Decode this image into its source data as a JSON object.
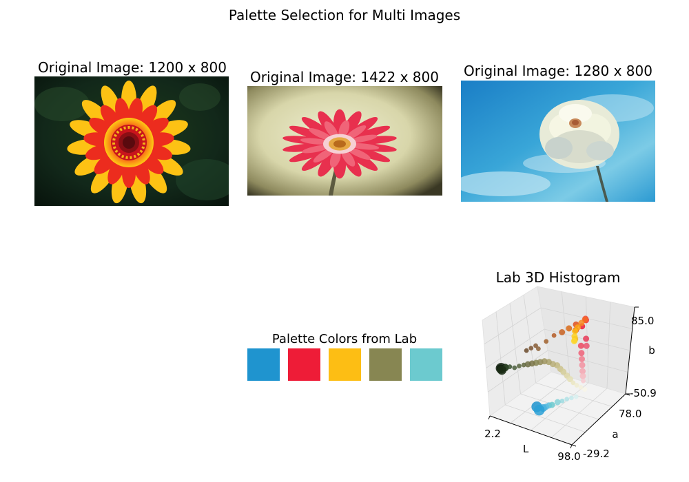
{
  "figure": {
    "suptitle": "Palette Selection for Multi Images"
  },
  "images": [
    {
      "title": "Original Image: 1200 x 800",
      "subject": "red and yellow zinnia flower on dark green background"
    },
    {
      "title": "Original Image: 1422 x 800",
      "subject": "pink gerbera daisy on beige vignette background"
    },
    {
      "title": "Original Image: 1280 x 800",
      "subject": "white dahlia against blue sky"
    }
  ],
  "palette": {
    "title": "Palette Colors from Lab",
    "colors": [
      "#1f94cf",
      "#ee1c37",
      "#fdbe14",
      "#878652",
      "#6ccacf"
    ]
  },
  "chart_data": {
    "type": "scatter",
    "projection": "3d",
    "title": "Lab 3D Histogram",
    "xlabel": "L",
    "ylabel": "a",
    "zlabel": "b",
    "x_ticks": [
      "2.2",
      "98.0"
    ],
    "y_ticks": [
      "-29.2",
      "78.0"
    ],
    "z_ticks": [
      "-50.9",
      "85.0"
    ],
    "xlim": [
      2.2,
      98.0
    ],
    "ylim": [
      -29.2,
      78.0
    ],
    "zlim": [
      -50.9,
      85.0
    ],
    "grid": true,
    "points": [
      {
        "L": 8,
        "a": -12,
        "b": 10,
        "size": 3,
        "color": "#10200e"
      },
      {
        "L": 10,
        "a": -14,
        "b": 9,
        "size": 2.5,
        "color": "#1a2c14"
      },
      {
        "L": 12,
        "a": -11,
        "b": 12,
        "size": 2,
        "color": "#243a1e"
      },
      {
        "L": 6,
        "a": -10,
        "b": 8,
        "size": 2,
        "color": "#0e1a0c"
      },
      {
        "L": 14,
        "a": -13,
        "b": 14,
        "size": 1.5,
        "color": "#2c4426"
      },
      {
        "L": 18,
        "a": -12,
        "b": 16,
        "size": 1,
        "color": "#3a5230"
      },
      {
        "L": 22,
        "a": -10,
        "b": 15,
        "size": 1,
        "color": "#4a5e3c"
      },
      {
        "L": 26,
        "a": -8,
        "b": 18,
        "size": 1,
        "color": "#56643e"
      },
      {
        "L": 30,
        "a": -6,
        "b": 20,
        "size": 1,
        "color": "#62683f"
      },
      {
        "L": 34,
        "a": -5,
        "b": 22,
        "size": 1.5,
        "color": "#6e6e44"
      },
      {
        "L": 38,
        "a": -4,
        "b": 24,
        "size": 1.5,
        "color": "#7b7648"
      },
      {
        "L": 42,
        "a": -3,
        "b": 26,
        "size": 1.5,
        "color": "#878652"
      },
      {
        "L": 46,
        "a": -2,
        "b": 28,
        "size": 1.5,
        "color": "#938c5a"
      },
      {
        "L": 50,
        "a": -1,
        "b": 30,
        "size": 1.5,
        "color": "#a09662"
      },
      {
        "L": 54,
        "a": 0,
        "b": 30,
        "size": 1.5,
        "color": "#aca36c"
      },
      {
        "L": 58,
        "a": 1,
        "b": 28,
        "size": 1.5,
        "color": "#b8ae78"
      },
      {
        "L": 62,
        "a": 2,
        "b": 27,
        "size": 1.5,
        "color": "#c2b880"
      },
      {
        "L": 66,
        "a": 1,
        "b": 24,
        "size": 1.5,
        "color": "#cbc28c"
      },
      {
        "L": 70,
        "a": 0,
        "b": 22,
        "size": 1.5,
        "color": "#d4cc98"
      },
      {
        "L": 74,
        "a": 0,
        "b": 18,
        "size": 1.5,
        "color": "#ddd6a6"
      },
      {
        "L": 78,
        "a": -1,
        "b": 15,
        "size": 1.5,
        "color": "#e4dfb4"
      },
      {
        "L": 82,
        "a": -2,
        "b": 12,
        "size": 1,
        "color": "#ebe6c2"
      },
      {
        "L": 86,
        "a": -2,
        "b": 10,
        "size": 1,
        "color": "#f0ecd0"
      },
      {
        "L": 90,
        "a": -1,
        "b": 8,
        "size": 1,
        "color": "#f4f0dc"
      },
      {
        "L": 94,
        "a": 0,
        "b": 6,
        "size": 1,
        "color": "#f8f6e8"
      },
      {
        "L": 24,
        "a": 10,
        "b": 30,
        "size": 1,
        "color": "#6a4a2a"
      },
      {
        "L": 28,
        "a": 12,
        "b": 34,
        "size": 1,
        "color": "#7a5230"
      },
      {
        "L": 32,
        "a": 14,
        "b": 38,
        "size": 1,
        "color": "#865a34"
      },
      {
        "L": 36,
        "a": 12,
        "b": 36,
        "size": 1,
        "color": "#8c6238"
      },
      {
        "L": 40,
        "a": 20,
        "b": 44,
        "size": 1,
        "color": "#a0602c"
      },
      {
        "L": 44,
        "a": 28,
        "b": 50,
        "size": 1,
        "color": "#b45a24"
      },
      {
        "L": 48,
        "a": 36,
        "b": 52,
        "size": 1.5,
        "color": "#c86020"
      },
      {
        "L": 52,
        "a": 42,
        "b": 56,
        "size": 1.5,
        "color": "#d86a18"
      },
      {
        "L": 56,
        "a": 48,
        "b": 60,
        "size": 1.5,
        "color": "#e0501c"
      },
      {
        "L": 50,
        "a": 58,
        "b": 44,
        "size": 1.5,
        "color": "#e0302a"
      },
      {
        "L": 52,
        "a": 66,
        "b": 46,
        "size": 1.5,
        "color": "#ee1c37"
      },
      {
        "L": 54,
        "a": 70,
        "b": 54,
        "size": 1.5,
        "color": "#f0283a"
      },
      {
        "L": 58,
        "a": 62,
        "b": 62,
        "size": 1.5,
        "color": "#f04a30"
      },
      {
        "L": 62,
        "a": 54,
        "b": 66,
        "size": 1.5,
        "color": "#f46a28"
      },
      {
        "L": 66,
        "a": 40,
        "b": 70,
        "size": 1.5,
        "color": "#f88a20"
      },
      {
        "L": 70,
        "a": 26,
        "b": 72,
        "size": 1.5,
        "color": "#fca818"
      },
      {
        "L": 74,
        "a": 14,
        "b": 74,
        "size": 1.5,
        "color": "#fdbe14"
      },
      {
        "L": 78,
        "a": 6,
        "b": 72,
        "size": 1.5,
        "color": "#fdd020"
      },
      {
        "L": 80,
        "a": 2,
        "b": 68,
        "size": 1.5,
        "color": "#fcd830"
      },
      {
        "L": 76,
        "a": 10,
        "b": 64,
        "size": 1.5,
        "color": "#f6c42c"
      },
      {
        "L": 72,
        "a": 18,
        "b": 60,
        "size": 1.5,
        "color": "#eeb030"
      },
      {
        "L": 60,
        "a": 50,
        "b": 28,
        "size": 1.5,
        "color": "#ec4860"
      },
      {
        "L": 64,
        "a": 44,
        "b": 22,
        "size": 1.5,
        "color": "#ee6078"
      },
      {
        "L": 68,
        "a": 38,
        "b": 18,
        "size": 1.5,
        "color": "#f07a8c"
      },
      {
        "L": 72,
        "a": 32,
        "b": 14,
        "size": 1.5,
        "color": "#f290a0"
      },
      {
        "L": 76,
        "a": 26,
        "b": 10,
        "size": 1.5,
        "color": "#f4a4b0"
      },
      {
        "L": 80,
        "a": 20,
        "b": 8,
        "size": 1.5,
        "color": "#f6b8c0"
      },
      {
        "L": 84,
        "a": 14,
        "b": 6,
        "size": 1,
        "color": "#f8cad0"
      },
      {
        "L": 62,
        "a": 56,
        "b": 36,
        "size": 1.5,
        "color": "#e83a58"
      },
      {
        "L": 66,
        "a": 50,
        "b": 30,
        "size": 1.5,
        "color": "#ea5470"
      },
      {
        "L": 48,
        "a": -14,
        "b": -28,
        "size": 3,
        "color": "#1f94cf"
      },
      {
        "L": 52,
        "a": -16,
        "b": -30,
        "size": 3,
        "color": "#2aa0d6"
      },
      {
        "L": 56,
        "a": -15,
        "b": -26,
        "size": 2,
        "color": "#3aa8da"
      },
      {
        "L": 60,
        "a": -16,
        "b": -22,
        "size": 1.5,
        "color": "#4cb4de"
      },
      {
        "L": 64,
        "a": -17,
        "b": -18,
        "size": 1.5,
        "color": "#5ec0e0"
      },
      {
        "L": 68,
        "a": -18,
        "b": -15,
        "size": 1.5,
        "color": "#6ccacf"
      },
      {
        "L": 72,
        "a": -14,
        "b": -12,
        "size": 1.5,
        "color": "#86d2d8"
      },
      {
        "L": 76,
        "a": -12,
        "b": -10,
        "size": 1,
        "color": "#9cdae0"
      },
      {
        "L": 80,
        "a": -10,
        "b": -7,
        "size": 1,
        "color": "#b2e2e6"
      },
      {
        "L": 84,
        "a": -8,
        "b": -5,
        "size": 1,
        "color": "#c6eaec"
      },
      {
        "L": 88,
        "a": -6,
        "b": -3,
        "size": 1,
        "color": "#d8f0f0"
      }
    ]
  }
}
